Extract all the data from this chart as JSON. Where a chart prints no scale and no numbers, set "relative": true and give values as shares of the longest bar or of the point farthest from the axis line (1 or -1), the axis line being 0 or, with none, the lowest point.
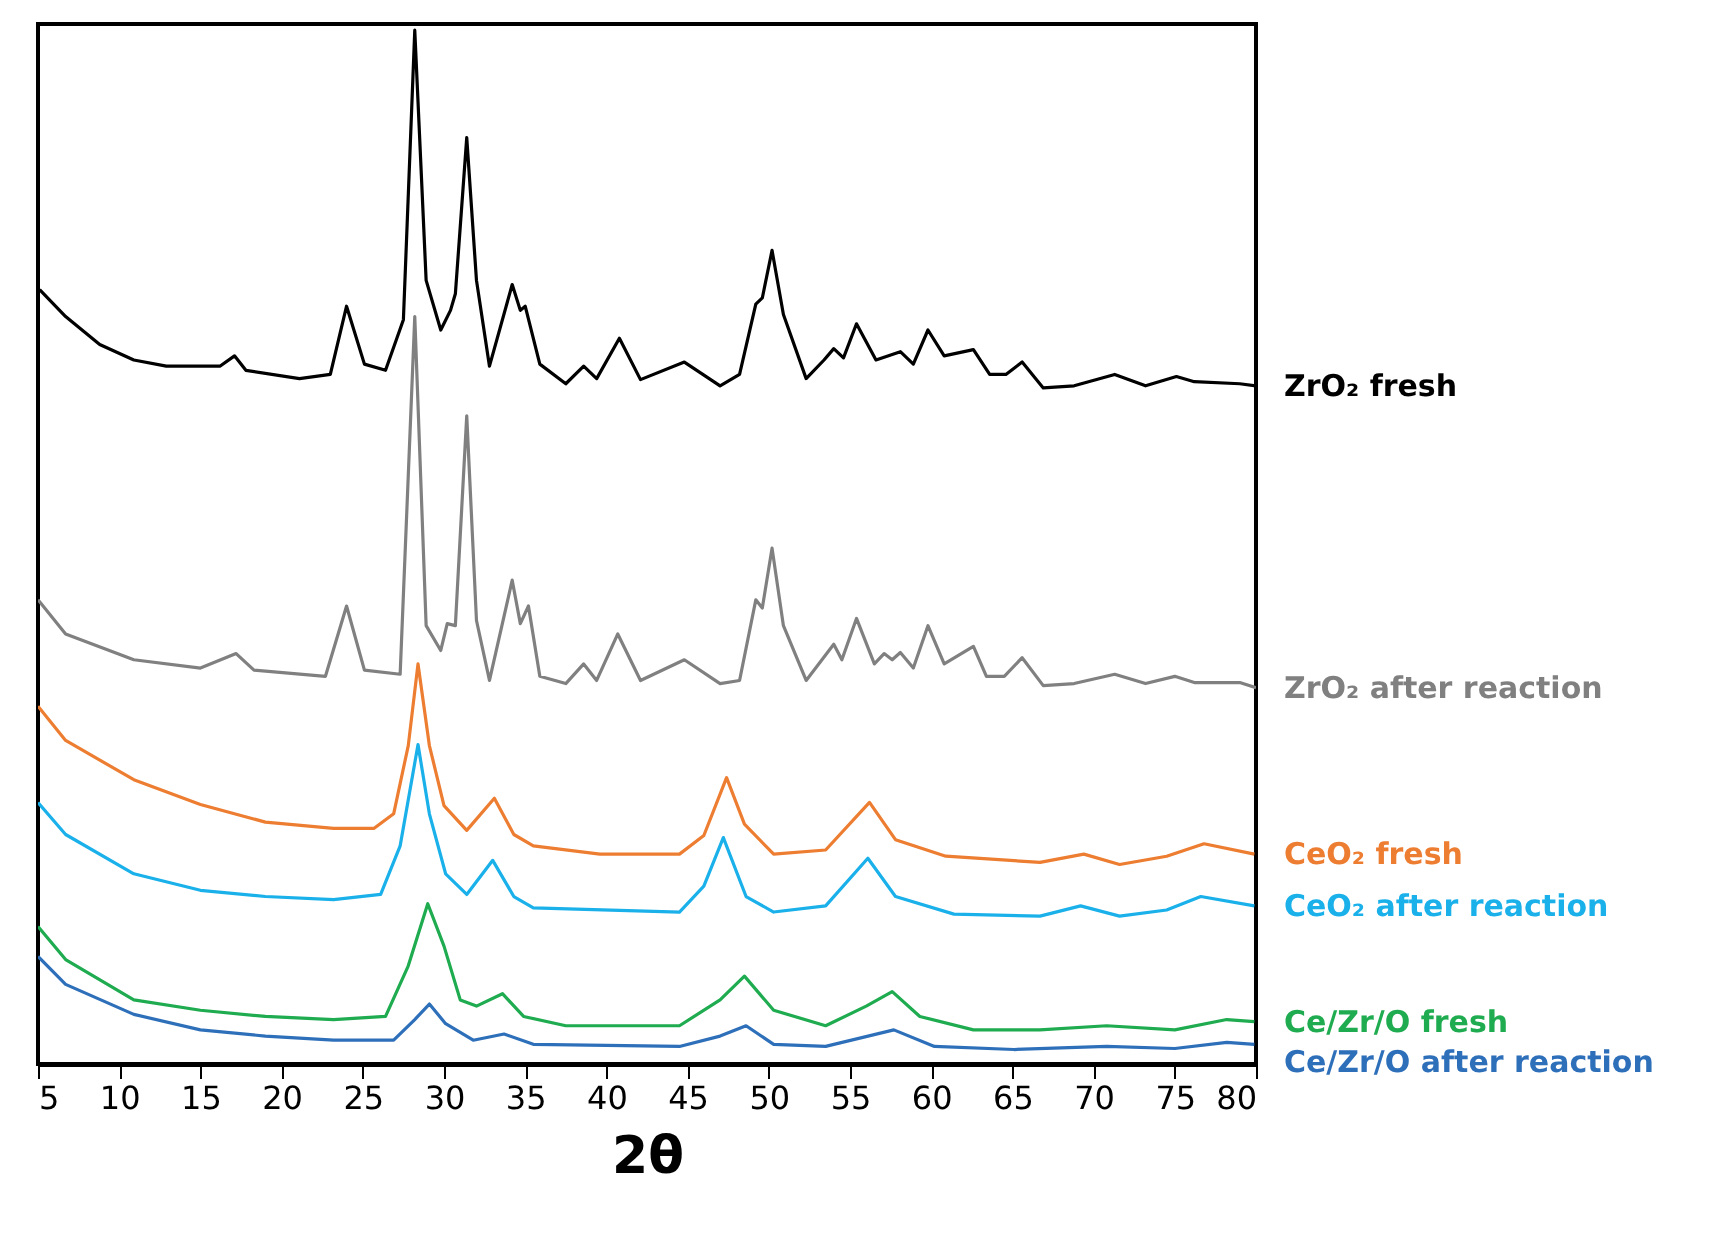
{
  "chart_data": {
    "type": "line",
    "relative": true,
    "xlabel": "2θ",
    "xlim": [
      5,
      80
    ],
    "xticks": [
      5,
      10,
      15,
      20,
      25,
      30,
      35,
      40,
      45,
      50,
      55,
      60,
      65,
      70,
      75,
      80
    ],
    "grid": false,
    "marker": "none",
    "line_style": "solid",
    "series": [
      {
        "name": "ZrO₂ fresh",
        "color": "#000000",
        "x": [
          5.1,
          6.7,
          8.8,
          10.9,
          12.9,
          16.2,
          17.1,
          17.8,
          21.1,
          23.0,
          24.0,
          25.1,
          26.4,
          27.5,
          28.2,
          28.9,
          29.8,
          30.4,
          30.7,
          31.4,
          32.0,
          32.8,
          34.2,
          34.7,
          35.0,
          35.9,
          37.5,
          38.6,
          39.4,
          40.8,
          42.1,
          44.8,
          47.0,
          48.2,
          49.2,
          49.6,
          50.2,
          50.9,
          52.3,
          53.4,
          54.0,
          54.6,
          55.4,
          56.6,
          58.1,
          58.9,
          59.8,
          60.8,
          62.6,
          63.6,
          64.6,
          65.6,
          66.9,
          68.8,
          71.3,
          73.2,
          75.1,
          76.2,
          79.0,
          80.0
        ],
        "values": [
          0.749,
          0.723,
          0.696,
          0.681,
          0.675,
          0.675,
          0.685,
          0.671,
          0.663,
          0.667,
          0.733,
          0.677,
          0.671,
          0.72,
          1.0,
          0.758,
          0.71,
          0.729,
          0.745,
          0.896,
          0.758,
          0.675,
          0.754,
          0.729,
          0.733,
          0.677,
          0.658,
          0.675,
          0.663,
          0.702,
          0.662,
          0.679,
          0.656,
          0.667,
          0.735,
          0.741,
          0.787,
          0.725,
          0.663,
          0.681,
          0.692,
          0.683,
          0.716,
          0.681,
          0.689,
          0.677,
          0.71,
          0.685,
          0.691,
          0.667,
          0.667,
          0.679,
          0.654,
          0.656,
          0.667,
          0.656,
          0.665,
          0.66,
          0.658,
          0.656
        ]
      },
      {
        "name": "ZrO₂ after reaction",
        "color": "#808080",
        "x": [
          5.0,
          6.7,
          10.9,
          15.0,
          17.2,
          18.3,
          22.7,
          24.0,
          25.1,
          27.3,
          28.2,
          28.9,
          29.8,
          30.2,
          30.7,
          31.4,
          32.0,
          32.8,
          34.2,
          34.7,
          35.2,
          35.9,
          37.5,
          38.6,
          39.4,
          40.7,
          42.1,
          44.8,
          47.0,
          48.2,
          49.2,
          49.6,
          50.2,
          50.9,
          52.3,
          54.0,
          54.5,
          55.4,
          56.5,
          57.1,
          57.6,
          58.1,
          58.9,
          59.8,
          60.8,
          62.6,
          63.4,
          64.5,
          65.6,
          66.9,
          68.8,
          71.3,
          73.2,
          75.0,
          76.2,
          79.0,
          80.0
        ],
        "values": [
          0.449,
          0.416,
          0.391,
          0.383,
          0.397,
          0.381,
          0.375,
          0.443,
          0.381,
          0.377,
          0.723,
          0.424,
          0.4,
          0.426,
          0.424,
          0.627,
          0.429,
          0.371,
          0.468,
          0.426,
          0.443,
          0.375,
          0.368,
          0.387,
          0.371,
          0.416,
          0.371,
          0.391,
          0.368,
          0.371,
          0.449,
          0.441,
          0.499,
          0.424,
          0.371,
          0.406,
          0.391,
          0.431,
          0.387,
          0.397,
          0.391,
          0.398,
          0.383,
          0.424,
          0.387,
          0.404,
          0.375,
          0.375,
          0.393,
          0.366,
          0.368,
          0.377,
          0.368,
          0.375,
          0.369,
          0.369,
          0.364
        ]
      },
      {
        "name": "CeO₂ fresh",
        "color": "#ed7d31",
        "x": [
          5.0,
          6.7,
          10.9,
          15.0,
          19.0,
          23.2,
          25.7,
          26.9,
          27.8,
          28.4,
          29.1,
          30.0,
          31.4,
          33.1,
          34.3,
          35.5,
          39.6,
          44.5,
          46.0,
          47.4,
          48.5,
          50.3,
          53.5,
          56.2,
          57.8,
          60.9,
          66.7,
          69.4,
          71.6,
          74.5,
          76.8,
          79.9
        ],
        "values": [
          0.346,
          0.313,
          0.275,
          0.251,
          0.234,
          0.228,
          0.228,
          0.242,
          0.308,
          0.387,
          0.308,
          0.25,
          0.226,
          0.257,
          0.222,
          0.211,
          0.203,
          0.203,
          0.221,
          0.277,
          0.232,
          0.203,
          0.207,
          0.253,
          0.217,
          0.201,
          0.195,
          0.203,
          0.193,
          0.201,
          0.213,
          0.203
        ]
      },
      {
        "name": "CeO₂ after reaction",
        "color": "#1ab0ea",
        "x": [
          5.0,
          6.7,
          10.9,
          15.0,
          19.0,
          23.2,
          26.1,
          27.3,
          28.4,
          29.1,
          30.1,
          31.4,
          33.0,
          34.3,
          35.5,
          44.5,
          46.0,
          47.2,
          48.6,
          50.3,
          53.5,
          56.1,
          57.8,
          61.4,
          66.7,
          69.2,
          71.6,
          74.5,
          76.6,
          79.9
        ],
        "values": [
          0.253,
          0.222,
          0.184,
          0.168,
          0.162,
          0.159,
          0.164,
          0.211,
          0.309,
          0.242,
          0.184,
          0.164,
          0.197,
          0.162,
          0.151,
          0.147,
          0.172,
          0.219,
          0.162,
          0.147,
          0.153,
          0.199,
          0.162,
          0.145,
          0.143,
          0.153,
          0.143,
          0.149,
          0.162,
          0.153
        ]
      },
      {
        "name": "Ce/Zr/O fresh",
        "color": "#1fab4f",
        "x": [
          5.0,
          6.7,
          10.9,
          15.0,
          19.0,
          23.2,
          26.4,
          27.8,
          29.0,
          30.0,
          31.0,
          32.0,
          33.6,
          34.9,
          37.5,
          44.5,
          47.0,
          48.5,
          50.3,
          53.5,
          56.0,
          57.6,
          59.3,
          62.6,
          66.7,
          70.8,
          75.0,
          78.2,
          79.9
        ],
        "values": [
          0.133,
          0.101,
          0.062,
          0.052,
          0.046,
          0.043,
          0.046,
          0.095,
          0.155,
          0.114,
          0.062,
          0.056,
          0.068,
          0.046,
          0.037,
          0.037,
          0.062,
          0.085,
          0.052,
          0.037,
          0.056,
          0.07,
          0.046,
          0.033,
          0.033,
          0.037,
          0.033,
          0.043,
          0.041
        ]
      },
      {
        "name": "Ce/Zr/O after reaction",
        "color": "#2e6fba",
        "x": [
          5.0,
          6.7,
          10.9,
          15.0,
          19.0,
          23.2,
          26.9,
          28.2,
          29.1,
          30.1,
          31.8,
          33.7,
          35.5,
          44.5,
          47.0,
          48.6,
          50.3,
          53.5,
          57.7,
          60.2,
          65.1,
          70.8,
          75.0,
          78.2,
          79.9
        ],
        "values": [
          0.104,
          0.077,
          0.048,
          0.033,
          0.027,
          0.023,
          0.023,
          0.043,
          0.058,
          0.039,
          0.023,
          0.029,
          0.019,
          0.017,
          0.027,
          0.037,
          0.019,
          0.017,
          0.033,
          0.017,
          0.014,
          0.017,
          0.015,
          0.021,
          0.019
        ]
      }
    ]
  }
}
